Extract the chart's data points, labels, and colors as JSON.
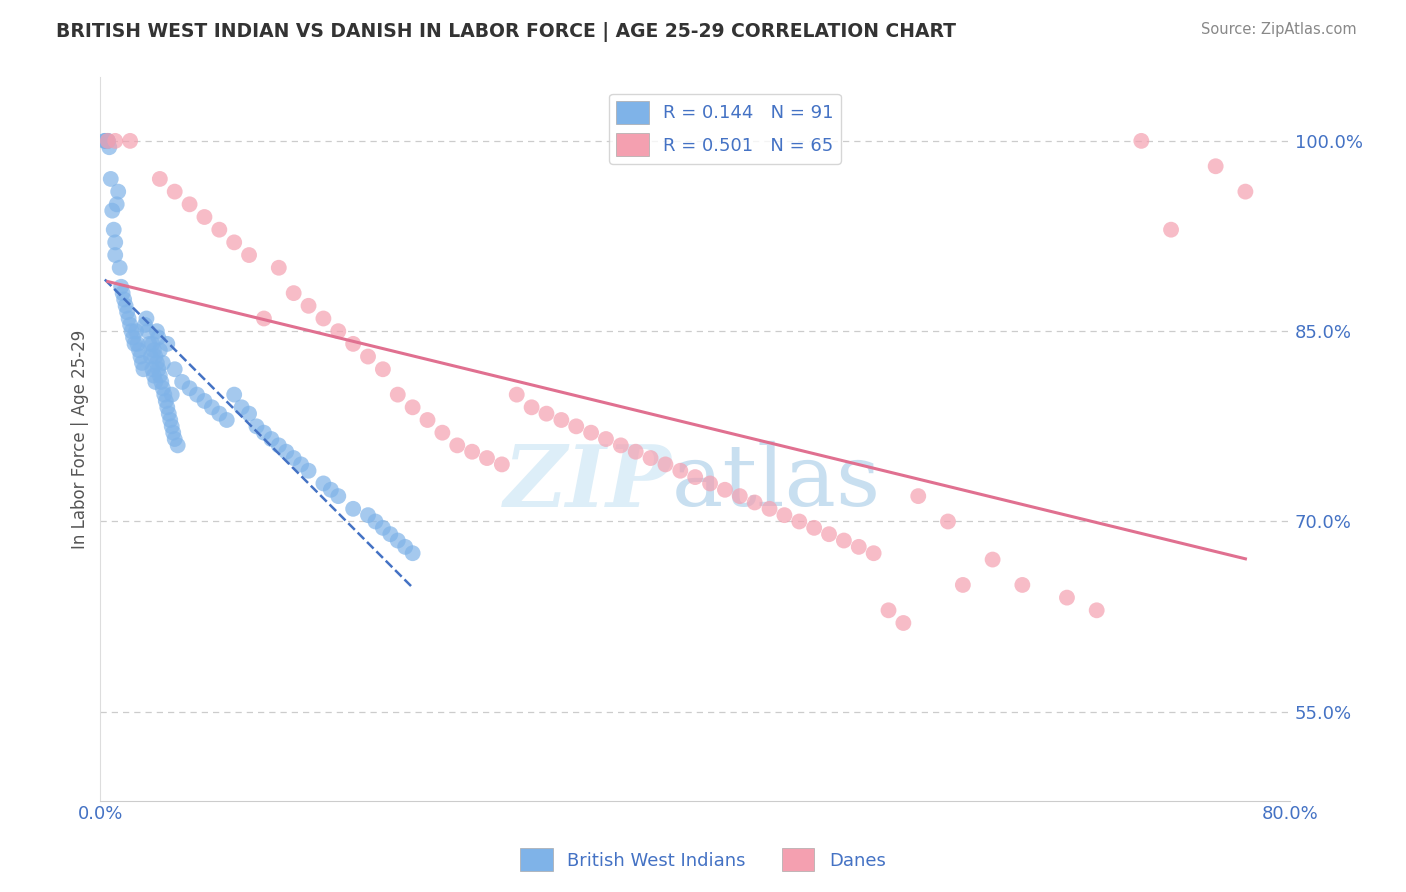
{
  "title": "BRITISH WEST INDIAN VS DANISH IN LABOR FORCE | AGE 25-29 CORRELATION CHART",
  "source_text": "Source: ZipAtlas.com",
  "ylabel": "In Labor Force | Age 25-29",
  "xlim": [
    0.0,
    80.0
  ],
  "ylim": [
    48.0,
    105.0
  ],
  "x_tick_vals": [
    0.0,
    80.0
  ],
  "x_tick_labels": [
    "0.0%",
    "80.0%"
  ],
  "y_tick_vals": [
    55.0,
    70.0,
    85.0,
    100.0
  ],
  "y_tick_labels": [
    "55.0%",
    "70.0%",
    "85.0%",
    "100.0%"
  ],
  "bwi_color": "#7fb3e8",
  "bwi_line_color": "#4472c4",
  "dane_color": "#f4a0b0",
  "dane_line_color": "#e07090",
  "bwi_R": 0.144,
  "bwi_N": 91,
  "dane_R": 0.501,
  "dane_N": 65,
  "bwi_x": [
    0.3,
    0.3,
    0.4,
    0.5,
    0.5,
    0.6,
    0.7,
    0.8,
    0.9,
    1.0,
    1.0,
    1.1,
    1.2,
    1.3,
    1.4,
    1.5,
    1.6,
    1.7,
    1.8,
    1.9,
    2.0,
    2.1,
    2.2,
    2.3,
    2.4,
    2.5,
    2.6,
    2.7,
    2.8,
    2.9,
    3.0,
    3.1,
    3.2,
    3.3,
    3.4,
    3.5,
    3.6,
    3.7,
    3.8,
    3.9,
    4.0,
    4.2,
    4.5,
    4.8,
    5.0,
    5.5,
    6.0,
    6.5,
    7.0,
    7.5,
    8.0,
    8.5,
    9.0,
    9.5,
    10.0,
    10.5,
    11.0,
    11.5,
    12.0,
    12.5,
    13.0,
    13.5,
    14.0,
    15.0,
    15.5,
    16.0,
    17.0,
    18.0,
    18.5,
    19.0,
    19.5,
    20.0,
    20.5,
    21.0,
    3.5,
    3.6,
    3.7,
    3.8,
    3.9,
    4.0,
    4.1,
    4.2,
    4.3,
    4.4,
    4.5,
    4.6,
    4.7,
    4.8,
    4.9,
    5.0,
    5.2
  ],
  "bwi_y": [
    100.0,
    100.0,
    100.0,
    100.0,
    100.0,
    99.5,
    97.0,
    94.5,
    93.0,
    91.0,
    92.0,
    95.0,
    96.0,
    90.0,
    88.5,
    88.0,
    87.5,
    87.0,
    86.5,
    86.0,
    85.5,
    85.0,
    84.5,
    84.0,
    85.0,
    84.0,
    83.5,
    83.0,
    82.5,
    82.0,
    85.5,
    86.0,
    85.0,
    84.0,
    83.0,
    82.0,
    81.5,
    81.0,
    85.0,
    84.5,
    83.5,
    82.5,
    84.0,
    80.0,
    82.0,
    81.0,
    80.5,
    80.0,
    79.5,
    79.0,
    78.5,
    78.0,
    80.0,
    79.0,
    78.5,
    77.5,
    77.0,
    76.5,
    76.0,
    75.5,
    75.0,
    74.5,
    74.0,
    73.0,
    72.5,
    72.0,
    71.0,
    70.5,
    70.0,
    69.5,
    69.0,
    68.5,
    68.0,
    67.5,
    84.0,
    83.5,
    83.0,
    82.5,
    82.0,
    81.5,
    81.0,
    80.5,
    80.0,
    79.5,
    79.0,
    78.5,
    78.0,
    77.5,
    77.0,
    76.5,
    76.0
  ],
  "dane_x": [
    0.5,
    1.0,
    2.0,
    4.0,
    5.0,
    6.0,
    7.0,
    8.0,
    9.0,
    10.0,
    11.0,
    12.0,
    13.0,
    14.0,
    15.0,
    16.0,
    17.0,
    18.0,
    19.0,
    20.0,
    21.0,
    22.0,
    23.0,
    24.0,
    25.0,
    26.0,
    27.0,
    28.0,
    29.0,
    30.0,
    31.0,
    32.0,
    33.0,
    34.0,
    35.0,
    36.0,
    37.0,
    38.0,
    39.0,
    40.0,
    41.0,
    42.0,
    43.0,
    44.0,
    45.0,
    46.0,
    47.0,
    48.0,
    49.0,
    50.0,
    51.0,
    52.0,
    53.0,
    54.0,
    55.0,
    57.0,
    58.0,
    60.0,
    62.0,
    65.0,
    67.0,
    70.0,
    72.0,
    75.0,
    77.0
  ],
  "dane_y": [
    100.0,
    100.0,
    100.0,
    97.0,
    96.0,
    95.0,
    94.0,
    93.0,
    92.0,
    91.0,
    86.0,
    90.0,
    88.0,
    87.0,
    86.0,
    85.0,
    84.0,
    83.0,
    82.0,
    80.0,
    79.0,
    78.0,
    77.0,
    76.0,
    75.5,
    75.0,
    74.5,
    80.0,
    79.0,
    78.5,
    78.0,
    77.5,
    77.0,
    76.5,
    76.0,
    75.5,
    75.0,
    74.5,
    74.0,
    73.5,
    73.0,
    72.5,
    72.0,
    71.5,
    71.0,
    70.5,
    70.0,
    69.5,
    69.0,
    68.5,
    68.0,
    67.5,
    63.0,
    62.0,
    72.0,
    70.0,
    65.0,
    67.0,
    65.0,
    64.0,
    63.0,
    100.0,
    93.0,
    98.0,
    96.0
  ],
  "watermark_color": "#ddeef8",
  "tick_color": "#4472c4",
  "title_color": "#333333",
  "axis_label_color": "#555555"
}
